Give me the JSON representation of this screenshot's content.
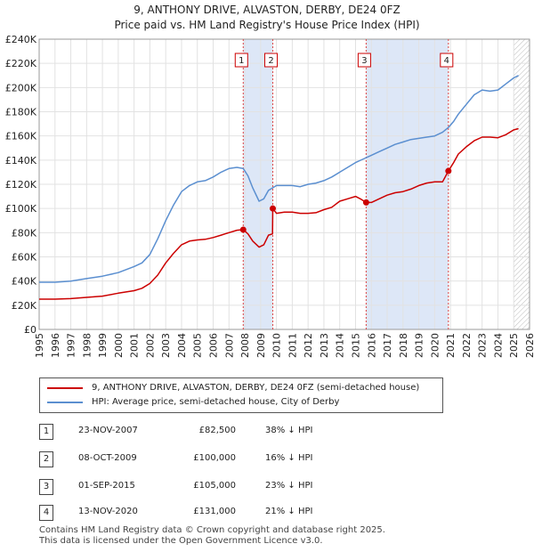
{
  "chart_data": {
    "type": "line",
    "title": "9, ANTHONY DRIVE, ALVASTON, DERBY, DE24 0FZ",
    "subtitle": "Price paid vs. HM Land Registry's House Price Index (HPI)",
    "xlim": [
      1995,
      2026
    ],
    "ylim": [
      0,
      240000
    ],
    "xticks": [
      "1995",
      "1996",
      "1997",
      "1998",
      "1999",
      "2000",
      "2001",
      "2002",
      "2003",
      "2004",
      "2005",
      "2006",
      "2007",
      "2008",
      "2009",
      "2010",
      "2011",
      "2012",
      "2013",
      "2014",
      "2015",
      "2016",
      "2017",
      "2018",
      "2019",
      "2020",
      "2021",
      "2022",
      "2023",
      "2024",
      "2025",
      "2026"
    ],
    "yticks": [
      "£0",
      "£20K",
      "£40K",
      "£60K",
      "£80K",
      "£100K",
      "£120K",
      "£140K",
      "£160K",
      "£180K",
      "£200K",
      "£220K",
      "£240K"
    ],
    "ytick_values": [
      0,
      20000,
      40000,
      60000,
      80000,
      100000,
      120000,
      140000,
      160000,
      180000,
      200000,
      220000,
      240000
    ],
    "series": [
      {
        "name": "9, ANTHONY DRIVE, ALVASTON, DERBY, DE24 0FZ (semi-detached house)",
        "color": "#cc0000",
        "x": [
          1995,
          1996,
          1997,
          1998,
          1999,
          2000,
          2001,
          2001.5,
          2002,
          2002.5,
          2003,
          2003.5,
          2004,
          2004.5,
          2005,
          2005.5,
          2006,
          2006.5,
          2007,
          2007.5,
          2007.9,
          2008.2,
          2008.5,
          2008.9,
          2009.2,
          2009.5,
          2009.75,
          2009.77,
          2010,
          2010.5,
          2011,
          2011.5,
          2012,
          2012.5,
          2013,
          2013.5,
          2014,
          2014.5,
          2015,
          2015.3,
          2015.67,
          2016,
          2016.5,
          2017,
          2017.5,
          2018,
          2018.5,
          2019,
          2019.5,
          2020,
          2020.5,
          2020.87,
          2021.2,
          2021.5,
          2022,
          2022.5,
          2023,
          2023.5,
          2024,
          2024.5,
          2025,
          2025.3
        ],
        "values": [
          25000,
          25000,
          25500,
          26500,
          27500,
          30000,
          32000,
          34000,
          38000,
          45000,
          55000,
          63000,
          70000,
          73000,
          74000,
          74500,
          76000,
          78000,
          80000,
          82000,
          82500,
          79000,
          73000,
          68000,
          70000,
          78000,
          79000,
          100000,
          96000,
          97000,
          97000,
          96000,
          96000,
          96500,
          99000,
          101000,
          106000,
          108000,
          110000,
          108000,
          105000,
          105000,
          108000,
          111000,
          113000,
          114000,
          116000,
          119000,
          121000,
          122000,
          122000,
          131000,
          138000,
          145000,
          151000,
          156000,
          159000,
          159000,
          158500,
          161000,
          165000,
          166000
        ]
      },
      {
        "name": "HPI: Average price, semi-detached house, City of Derby",
        "color": "#5b8fd0",
        "x": [
          1995,
          1996,
          1997,
          1998,
          1999,
          2000,
          2001,
          2001.5,
          2002,
          2002.5,
          2003,
          2003.5,
          2004,
          2004.5,
          2005,
          2005.5,
          2006,
          2006.5,
          2007,
          2007.5,
          2007.9,
          2008.2,
          2008.5,
          2008.9,
          2009.2,
          2009.5,
          2009.75,
          2010,
          2010.5,
          2011,
          2011.5,
          2012,
          2012.5,
          2013,
          2013.5,
          2014,
          2014.5,
          2015,
          2015.5,
          2016,
          2016.5,
          2017,
          2017.5,
          2018,
          2018.5,
          2019,
          2019.5,
          2020,
          2020.5,
          2020.87,
          2021.2,
          2021.5,
          2022,
          2022.5,
          2023,
          2023.5,
          2024,
          2024.5,
          2025,
          2025.3
        ],
        "values": [
          39000,
          39000,
          40000,
          42000,
          44000,
          47000,
          52000,
          55000,
          62000,
          75000,
          90000,
          103000,
          114000,
          119000,
          122000,
          123000,
          126000,
          130000,
          133000,
          134000,
          133000,
          127000,
          117000,
          106000,
          108000,
          115000,
          117000,
          119000,
          119000,
          119000,
          118000,
          120000,
          121000,
          123000,
          126000,
          130000,
          134000,
          138000,
          141000,
          144000,
          147000,
          150000,
          153000,
          155000,
          157000,
          158000,
          159000,
          160000,
          163000,
          167000,
          172000,
          178000,
          186000,
          194000,
          198000,
          197000,
          198000,
          203000,
          208000,
          210000
        ]
      }
    ],
    "transactions": [
      {
        "label": "1",
        "x": 2007.9,
        "value": 82500
      },
      {
        "label": "2",
        "x": 2009.77,
        "value": 100000
      },
      {
        "label": "3",
        "x": 2015.67,
        "value": 105000
      },
      {
        "label": "4",
        "x": 2020.87,
        "value": 131000
      }
    ],
    "shaded_ranges": [
      [
        2007.9,
        2009.77
      ],
      [
        2015.67,
        2020.87
      ]
    ],
    "forecast_start": 2025.0
  },
  "legend": [
    {
      "label": "9, ANTHONY DRIVE, ALVASTON, DERBY, DE24 0FZ (semi-detached house)",
      "color": "#cc0000"
    },
    {
      "label": "HPI: Average price, semi-detached house, City of Derby",
      "color": "#5b8fd0"
    }
  ],
  "table": [
    {
      "num": "1",
      "date": "23-NOV-2007",
      "price": "£82,500",
      "hpi": "38% ↓ HPI"
    },
    {
      "num": "2",
      "date": "08-OCT-2009",
      "price": "£100,000",
      "hpi": "16% ↓ HPI"
    },
    {
      "num": "3",
      "date": "01-SEP-2015",
      "price": "£105,000",
      "hpi": "23% ↓ HPI"
    },
    {
      "num": "4",
      "date": "13-NOV-2020",
      "price": "£131,000",
      "hpi": "21% ↓ HPI"
    }
  ],
  "footer": {
    "line1": "Contains HM Land Registry data © Crown copyright and database right 2025.",
    "line2": "This data is licensed under the Open Government Licence v3.0."
  }
}
